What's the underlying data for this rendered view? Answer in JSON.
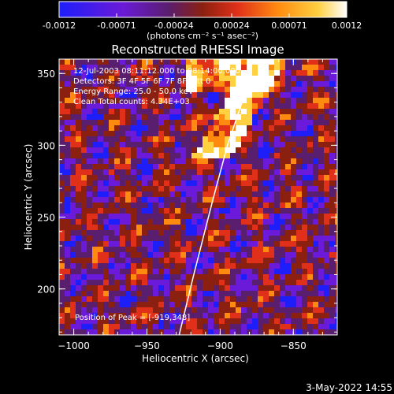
{
  "chart_data": {
    "type": "heatmap",
    "title": "Reconstructed RHESSI Image",
    "xlabel": "Heliocentric X (arcsec)",
    "ylabel": "Heliocentric Y (arcsec)",
    "xlim": [
      -1010,
      -820
    ],
    "ylim": [
      168,
      360
    ],
    "x_ticks": [
      -1000,
      -950,
      -900,
      -850
    ],
    "y_ticks": [
      200,
      250,
      300,
      350
    ],
    "colorbar": {
      "min": -0.0012,
      "max": 0.0012,
      "ticks": [
        "-0.0012",
        "-0.00071",
        "-0.00024",
        "0.00024",
        "0.00071",
        "0.0012"
      ],
      "units_label": "(photons cm⁻² s⁻¹ asec⁻²)",
      "colors": [
        "#1e1efa",
        "#6a1ad8",
        "#5a1e6e",
        "#8c2010",
        "#e0301a",
        "#ff8a10",
        "#ffd040",
        "#ffffff"
      ]
    },
    "annotations": {
      "time": "12-Jul-2003 08:11:12.000 to 08:14:00.000",
      "detectors": "Detectors: 3F 4F 5F 6F 7F 8F, Att 0",
      "energy": "Energy Range: 25.0 - 50.0 keV",
      "clean": "Clean     Total counts: 4.34E+03",
      "peak": "Position of Peak = [-919,348]"
    },
    "limb_line": {
      "x": [
        -928,
        -918,
        -905,
        -895,
        -880
      ],
      "y": [
        168,
        210,
        262,
        300,
        345
      ]
    }
  },
  "footer": {
    "date": "3-May-2022 14:55"
  }
}
